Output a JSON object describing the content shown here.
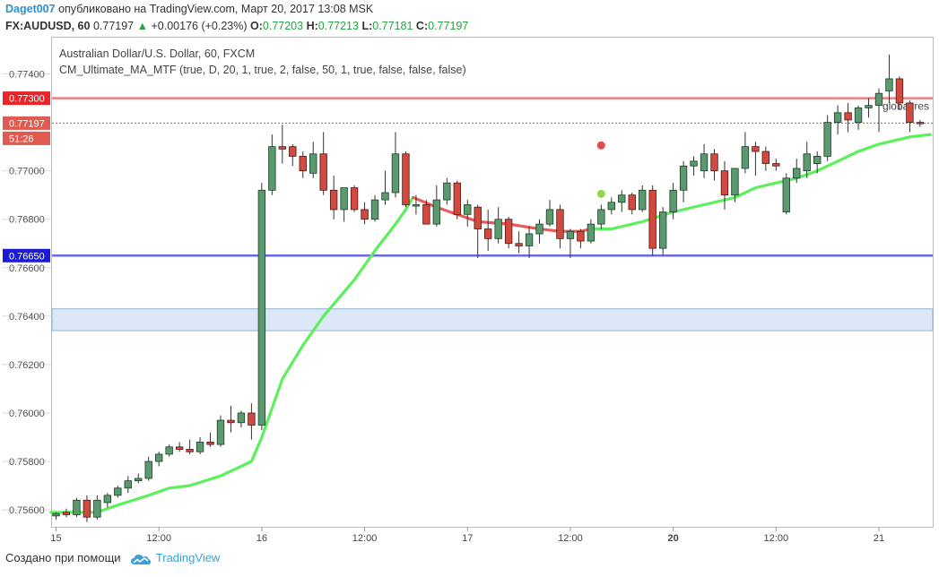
{
  "header": {
    "user": "Daget007",
    "published": "опубликовано на TradingView.com, Март 20, 2017 13:08 MSK",
    "symbol": "FX:AUDUSD, 60",
    "last": "0.77197",
    "change": "+0.00176 (+0.23%)",
    "o_label": "O:",
    "o": "0.77203",
    "h_label": "H:",
    "h": "0.77213",
    "l_label": "L:",
    "l": "0.77181",
    "c_label": "C:",
    "c": "0.77197"
  },
  "chart_data": {
    "type": "candlestick",
    "title": "Australian Dollar/U.S. Dollar, 60, FXCM",
    "indicator": "CM_Ultimate_MA_MTF (true, D, 20, 1, true, 2, false, 50, 1, true, false, false, false)",
    "ylim": [
      0.7553,
      0.7755
    ],
    "xlim": [
      0,
      86
    ],
    "y_ticks": [
      "0.77400",
      "0.77000",
      "0.76800",
      "0.76600",
      "0.76400",
      "0.76200",
      "0.76000",
      "0.75800",
      "0.75600"
    ],
    "x_ticks": [
      {
        "label": "15",
        "x": 0,
        "bold": false
      },
      {
        "label": "12:00",
        "x": 10,
        "bold": false
      },
      {
        "label": "16",
        "x": 20,
        "bold": false
      },
      {
        "label": "12:00",
        "x": 30,
        "bold": false
      },
      {
        "label": "17",
        "x": 40,
        "bold": false
      },
      {
        "label": "12:00",
        "x": 50,
        "bold": false
      },
      {
        "label": "20",
        "x": 60,
        "bold": true
      },
      {
        "label": "12:00",
        "x": 70,
        "bold": false
      },
      {
        "label": "21",
        "x": 80,
        "bold": false
      }
    ],
    "price_badges": [
      {
        "label": "0.77300",
        "value": 0.773,
        "color": "#e8262a"
      },
      {
        "label": "0.77197",
        "value": 0.77197,
        "color": "#e05a4f"
      },
      {
        "label": "51:26",
        "value": 0.77144,
        "color": "#e05a4f"
      },
      {
        "label": "0.76650",
        "value": 0.7665,
        "color": "#1b1bd6"
      }
    ],
    "hlines": [
      {
        "name": "global-res-line",
        "value": 0.773,
        "color": "#ef7d7d",
        "width": 2.5,
        "dashed": false,
        "label": "global res"
      },
      {
        "name": "last-price-line",
        "value": 0.77197,
        "color": "#c0504d",
        "width": 1,
        "dashed": true,
        "label": ""
      },
      {
        "name": "support-line",
        "value": 0.7665,
        "color": "#6a6ae8",
        "width": 2.5,
        "dashed": false,
        "label": ""
      }
    ],
    "zone": {
      "from": 0.7634,
      "to": 0.7643,
      "color": "#dbe8f8",
      "border": "#8fb0d8"
    },
    "candles": [
      {
        "o": 0.75575,
        "h": 0.7559,
        "l": 0.7556,
        "c": 0.75585
      },
      {
        "o": 0.7559,
        "h": 0.75605,
        "l": 0.7557,
        "c": 0.7558
      },
      {
        "o": 0.7558,
        "h": 0.7565,
        "l": 0.7557,
        "c": 0.7564
      },
      {
        "o": 0.7564,
        "h": 0.7566,
        "l": 0.7555,
        "c": 0.7557
      },
      {
        "o": 0.7557,
        "h": 0.7566,
        "l": 0.7556,
        "c": 0.7564
      },
      {
        "o": 0.7563,
        "h": 0.7567,
        "l": 0.7561,
        "c": 0.7566
      },
      {
        "o": 0.7566,
        "h": 0.757,
        "l": 0.7565,
        "c": 0.7569
      },
      {
        "o": 0.7569,
        "h": 0.7574,
        "l": 0.7567,
        "c": 0.7572
      },
      {
        "o": 0.7572,
        "h": 0.7575,
        "l": 0.7571,
        "c": 0.7573
      },
      {
        "o": 0.7573,
        "h": 0.7582,
        "l": 0.7572,
        "c": 0.758
      },
      {
        "o": 0.758,
        "h": 0.7584,
        "l": 0.7578,
        "c": 0.7583
      },
      {
        "o": 0.7583,
        "h": 0.7587,
        "l": 0.7582,
        "c": 0.7586
      },
      {
        "o": 0.7586,
        "h": 0.7588,
        "l": 0.7584,
        "c": 0.7585
      },
      {
        "o": 0.7585,
        "h": 0.7589,
        "l": 0.7583,
        "c": 0.7584
      },
      {
        "o": 0.7584,
        "h": 0.759,
        "l": 0.7583,
        "c": 0.7588
      },
      {
        "o": 0.7588,
        "h": 0.7592,
        "l": 0.7586,
        "c": 0.7587
      },
      {
        "o": 0.7587,
        "h": 0.7599,
        "l": 0.7586,
        "c": 0.7597
      },
      {
        "o": 0.7597,
        "h": 0.7603,
        "l": 0.7592,
        "c": 0.7596
      },
      {
        "o": 0.7596,
        "h": 0.7601,
        "l": 0.7594,
        "c": 0.76
      },
      {
        "o": 0.76,
        "h": 0.7604,
        "l": 0.7589,
        "c": 0.7595
      },
      {
        "o": 0.7595,
        "h": 0.7695,
        "l": 0.7593,
        "c": 0.7692
      },
      {
        "o": 0.7692,
        "h": 0.7715,
        "l": 0.769,
        "c": 0.771
      },
      {
        "o": 0.771,
        "h": 0.7719,
        "l": 0.7703,
        "c": 0.7709
      },
      {
        "o": 0.771,
        "h": 0.7711,
        "l": 0.7702,
        "c": 0.7706
      },
      {
        "o": 0.7706,
        "h": 0.7708,
        "l": 0.7697,
        "c": 0.77
      },
      {
        "o": 0.7699,
        "h": 0.7712,
        "l": 0.7697,
        "c": 0.7707
      },
      {
        "o": 0.7707,
        "h": 0.7716,
        "l": 0.769,
        "c": 0.7692
      },
      {
        "o": 0.7692,
        "h": 0.7698,
        "l": 0.768,
        "c": 0.7684
      },
      {
        "o": 0.7684,
        "h": 0.7693,
        "l": 0.7679,
        "c": 0.7693
      },
      {
        "o": 0.7693,
        "h": 0.7694,
        "l": 0.7683,
        "c": 0.7684
      },
      {
        "o": 0.7684,
        "h": 0.7687,
        "l": 0.7678,
        "c": 0.768
      },
      {
        "o": 0.768,
        "h": 0.769,
        "l": 0.7679,
        "c": 0.7688
      },
      {
        "o": 0.7688,
        "h": 0.77,
        "l": 0.7686,
        "c": 0.7691
      },
      {
        "o": 0.7691,
        "h": 0.7716,
        "l": 0.7689,
        "c": 0.7707
      },
      {
        "o": 0.7707,
        "h": 0.7708,
        "l": 0.7685,
        "c": 0.7686
      },
      {
        "o": 0.7686,
        "h": 0.769,
        "l": 0.7682,
        "c": 0.7686
      },
      {
        "o": 0.7686,
        "h": 0.7688,
        "l": 0.7678,
        "c": 0.7678
      },
      {
        "o": 0.7678,
        "h": 0.7694,
        "l": 0.7677,
        "c": 0.7688
      },
      {
        "o": 0.7688,
        "h": 0.7697,
        "l": 0.7686,
        "c": 0.7695
      },
      {
        "o": 0.7695,
        "h": 0.7696,
        "l": 0.768,
        "c": 0.7682
      },
      {
        "o": 0.7682,
        "h": 0.7688,
        "l": 0.7677,
        "c": 0.7686
      },
      {
        "o": 0.7685,
        "h": 0.7686,
        "l": 0.7664,
        "c": 0.7676
      },
      {
        "o": 0.7676,
        "h": 0.7684,
        "l": 0.7667,
        "c": 0.7672
      },
      {
        "o": 0.7672,
        "h": 0.7685,
        "l": 0.767,
        "c": 0.768
      },
      {
        "o": 0.768,
        "h": 0.7681,
        "l": 0.7668,
        "c": 0.767
      },
      {
        "o": 0.767,
        "h": 0.7675,
        "l": 0.7666,
        "c": 0.7669
      },
      {
        "o": 0.7669,
        "h": 0.7677,
        "l": 0.7664,
        "c": 0.7674
      },
      {
        "o": 0.7674,
        "h": 0.768,
        "l": 0.767,
        "c": 0.7678
      },
      {
        "o": 0.7678,
        "h": 0.7688,
        "l": 0.7677,
        "c": 0.7684
      },
      {
        "o": 0.7684,
        "h": 0.7686,
        "l": 0.7668,
        "c": 0.7672
      },
      {
        "o": 0.7672,
        "h": 0.7676,
        "l": 0.7664,
        "c": 0.7675
      },
      {
        "o": 0.7675,
        "h": 0.7676,
        "l": 0.7668,
        "c": 0.7671
      },
      {
        "o": 0.7671,
        "h": 0.768,
        "l": 0.767,
        "c": 0.7678
      },
      {
        "o": 0.7678,
        "h": 0.7686,
        "l": 0.7676,
        "c": 0.7684
      },
      {
        "o": 0.7684,
        "h": 0.7689,
        "l": 0.7682,
        "c": 0.7687
      },
      {
        "o": 0.7687,
        "h": 0.7692,
        "l": 0.7683,
        "c": 0.769
      },
      {
        "o": 0.769,
        "h": 0.7691,
        "l": 0.7682,
        "c": 0.7684
      },
      {
        "o": 0.7684,
        "h": 0.7694,
        "l": 0.7683,
        "c": 0.7692
      },
      {
        "o": 0.7692,
        "h": 0.7694,
        "l": 0.7665,
        "c": 0.7668
      },
      {
        "o": 0.7668,
        "h": 0.7685,
        "l": 0.7665,
        "c": 0.7683
      },
      {
        "o": 0.7683,
        "h": 0.7695,
        "l": 0.768,
        "c": 0.7692
      },
      {
        "o": 0.7692,
        "h": 0.7704,
        "l": 0.7687,
        "c": 0.7702
      },
      {
        "o": 0.7702,
        "h": 0.7706,
        "l": 0.7698,
        "c": 0.7704
      },
      {
        "o": 0.77,
        "h": 0.7711,
        "l": 0.7697,
        "c": 0.7707
      },
      {
        "o": 0.7707,
        "h": 0.7709,
        "l": 0.7696,
        "c": 0.77
      },
      {
        "o": 0.77,
        "h": 0.7704,
        "l": 0.7684,
        "c": 0.769
      },
      {
        "o": 0.769,
        "h": 0.7701,
        "l": 0.7687,
        "c": 0.7701
      },
      {
        "o": 0.7701,
        "h": 0.7716,
        "l": 0.7699,
        "c": 0.771
      },
      {
        "o": 0.771,
        "h": 0.7712,
        "l": 0.7698,
        "c": 0.7708
      },
      {
        "o": 0.7708,
        "h": 0.771,
        "l": 0.77,
        "c": 0.7703
      },
      {
        "o": 0.7703,
        "h": 0.7705,
        "l": 0.77,
        "c": 0.7702
      },
      {
        "o": 0.7683,
        "h": 0.7699,
        "l": 0.7682,
        "c": 0.7697
      },
      {
        "o": 0.7697,
        "h": 0.7705,
        "l": 0.7695,
        "c": 0.7701
      },
      {
        "o": 0.77,
        "h": 0.7712,
        "l": 0.7697,
        "c": 0.7707
      },
      {
        "o": 0.7703,
        "h": 0.7708,
        "l": 0.7699,
        "c": 0.7706
      },
      {
        "o": 0.7706,
        "h": 0.7723,
        "l": 0.7704,
        "c": 0.772
      },
      {
        "o": 0.772,
        "h": 0.7727,
        "l": 0.7715,
        "c": 0.7724
      },
      {
        "o": 0.7724,
        "h": 0.7728,
        "l": 0.7716,
        "c": 0.7721
      },
      {
        "o": 0.772,
        "h": 0.7727,
        "l": 0.7717,
        "c": 0.7726
      },
      {
        "o": 0.7726,
        "h": 0.773,
        "l": 0.7722,
        "c": 0.7727
      },
      {
        "o": 0.7727,
        "h": 0.7734,
        "l": 0.7716,
        "c": 0.7732
      },
      {
        "o": 0.7733,
        "h": 0.7748,
        "l": 0.7728,
        "c": 0.7738
      },
      {
        "o": 0.7738,
        "h": 0.7739,
        "l": 0.7725,
        "c": 0.7728
      },
      {
        "o": 0.7728,
        "h": 0.7729,
        "l": 0.7716,
        "c": 0.772
      },
      {
        "o": 0.772,
        "h": 0.7721,
        "l": 0.77181,
        "c": 0.77197
      }
    ],
    "ma_segments": [
      {
        "color": "#5cf05c",
        "points": [
          [
            -0.5,
            0.7559
          ],
          [
            4,
            0.7559
          ],
          [
            6,
            0.7562
          ],
          [
            9,
            0.7566
          ],
          [
            11,
            0.7569
          ],
          [
            13,
            0.757
          ],
          [
            16,
            0.7574
          ],
          [
            18,
            0.7578
          ],
          [
            19,
            0.758
          ],
          [
            20,
            0.759
          ],
          [
            22,
            0.7614
          ],
          [
            24,
            0.7628
          ],
          [
            26,
            0.764
          ],
          [
            29,
            0.7655
          ],
          [
            31,
            0.7667
          ],
          [
            33,
            0.7678
          ],
          [
            34,
            0.7684
          ],
          [
            34.7,
            0.7689
          ]
        ]
      },
      {
        "color": "#ee5a5a",
        "points": [
          [
            34.7,
            0.7689
          ],
          [
            37,
            0.7685
          ],
          [
            39,
            0.7682
          ],
          [
            41,
            0.7679
          ],
          [
            44,
            0.7678
          ],
          [
            47,
            0.7676
          ],
          [
            49,
            0.7675
          ],
          [
            51,
            0.7675
          ],
          [
            52,
            0.7676
          ]
        ]
      },
      {
        "color": "#5cf05c",
        "points": [
          [
            52,
            0.7676
          ],
          [
            54,
            0.7676
          ],
          [
            57,
            0.7679
          ],
          [
            60,
            0.7683
          ],
          [
            63,
            0.7686
          ],
          [
            66,
            0.7689
          ],
          [
            68,
            0.7693
          ],
          [
            70,
            0.7695
          ],
          [
            72,
            0.7697
          ],
          [
            74,
            0.77
          ],
          [
            76,
            0.7704
          ],
          [
            78,
            0.7708
          ],
          [
            80,
            0.7711
          ],
          [
            83,
            0.7714
          ],
          [
            85,
            0.7715
          ]
        ]
      }
    ],
    "dots": [
      {
        "x": 53.0,
        "value": 0.77105,
        "color": "#e04b4b"
      },
      {
        "x": 53.0,
        "value": 0.76905,
        "color": "#8fd84a"
      }
    ]
  },
  "footer": {
    "created_with": "Создано при помощи",
    "brand": "TradingView",
    "brand_icon": "tradingview-cloud-icon"
  }
}
